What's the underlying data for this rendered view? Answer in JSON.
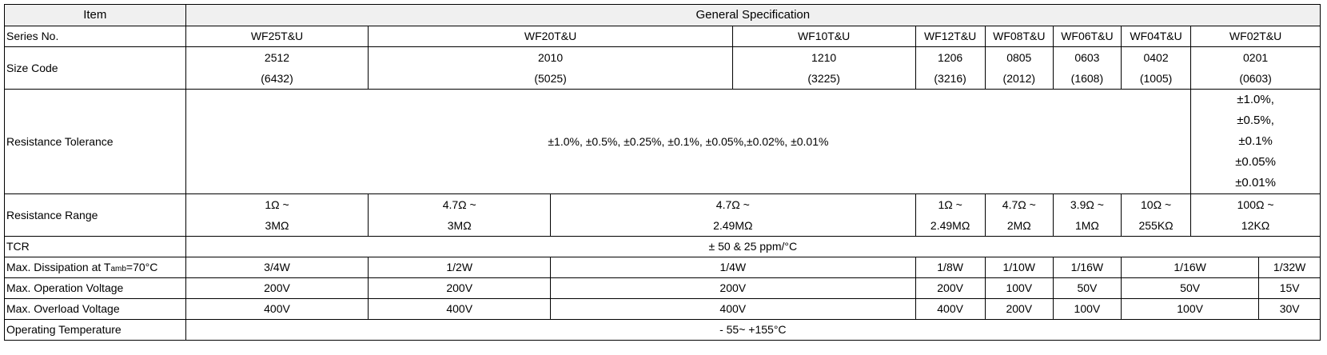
{
  "header": {
    "item": "Item",
    "general": "General Specification"
  },
  "rows": {
    "series": {
      "label": "Series No.",
      "values": [
        "WF25T&U",
        "WF20T&U",
        "WF10T&U",
        "WF12T&U",
        "WF08T&U",
        "WF06T&U",
        "WF04T&U",
        "WF02T&U"
      ]
    },
    "size": {
      "label": "Size Code",
      "codes": [
        "2512",
        "2010",
        "1210",
        "1206",
        "0805",
        "0603",
        "0402",
        "0201"
      ],
      "metric": [
        "(6432)",
        "(5025)",
        "(3225)",
        "(3216)",
        "(2012)",
        "(1608)",
        "(1005)",
        "(0603)"
      ]
    },
    "tolerance": {
      "label": "Resistance Tolerance",
      "main": "±1.0%, ±0.5%, ±0.25%, ±0.1%, ±0.05%,±0.02%, ±0.01%",
      "wf02": [
        "±1.0%,",
        "±0.5%,",
        "±0.1%",
        "±0.05%",
        "±0.01%"
      ]
    },
    "range": {
      "label": "Resistance Range",
      "min": [
        "1Ω ~",
        "4.7Ω ~",
        "4.7Ω ~",
        "1Ω ~",
        "4.7Ω ~",
        "3.9Ω ~",
        "10Ω ~",
        "100Ω ~"
      ],
      "max": [
        "3MΩ",
        "3MΩ",
        "2.49MΩ",
        "2.49MΩ",
        "2MΩ",
        "1MΩ",
        "255KΩ",
        "12KΩ"
      ]
    },
    "tcr": {
      "label": "TCR",
      "value": "± 50 & 25 ppm/°C"
    },
    "dissipation": {
      "label_prefix": "Max. Dissipation at T",
      "label_sub": "amb",
      "label_suffix": "=70°C",
      "values": [
        "3/4W",
        "1/2W",
        "1/4W",
        "1/8W",
        "1/10W",
        "1/16W",
        "1/16W",
        "1/32W"
      ]
    },
    "operation_voltage": {
      "label": "Max. Operation Voltage",
      "values": [
        "200V",
        "200V",
        "200V",
        "200V",
        "100V",
        "50V",
        "50V",
        "15V"
      ]
    },
    "overload_voltage": {
      "label": "Max. Overload Voltage",
      "values": [
        "400V",
        "400V",
        "400V",
        "400V",
        "200V",
        "100V",
        "100V",
        "30V"
      ]
    },
    "temperature": {
      "label": "Operating Temperature",
      "value": "- 55~ +155°C"
    }
  }
}
